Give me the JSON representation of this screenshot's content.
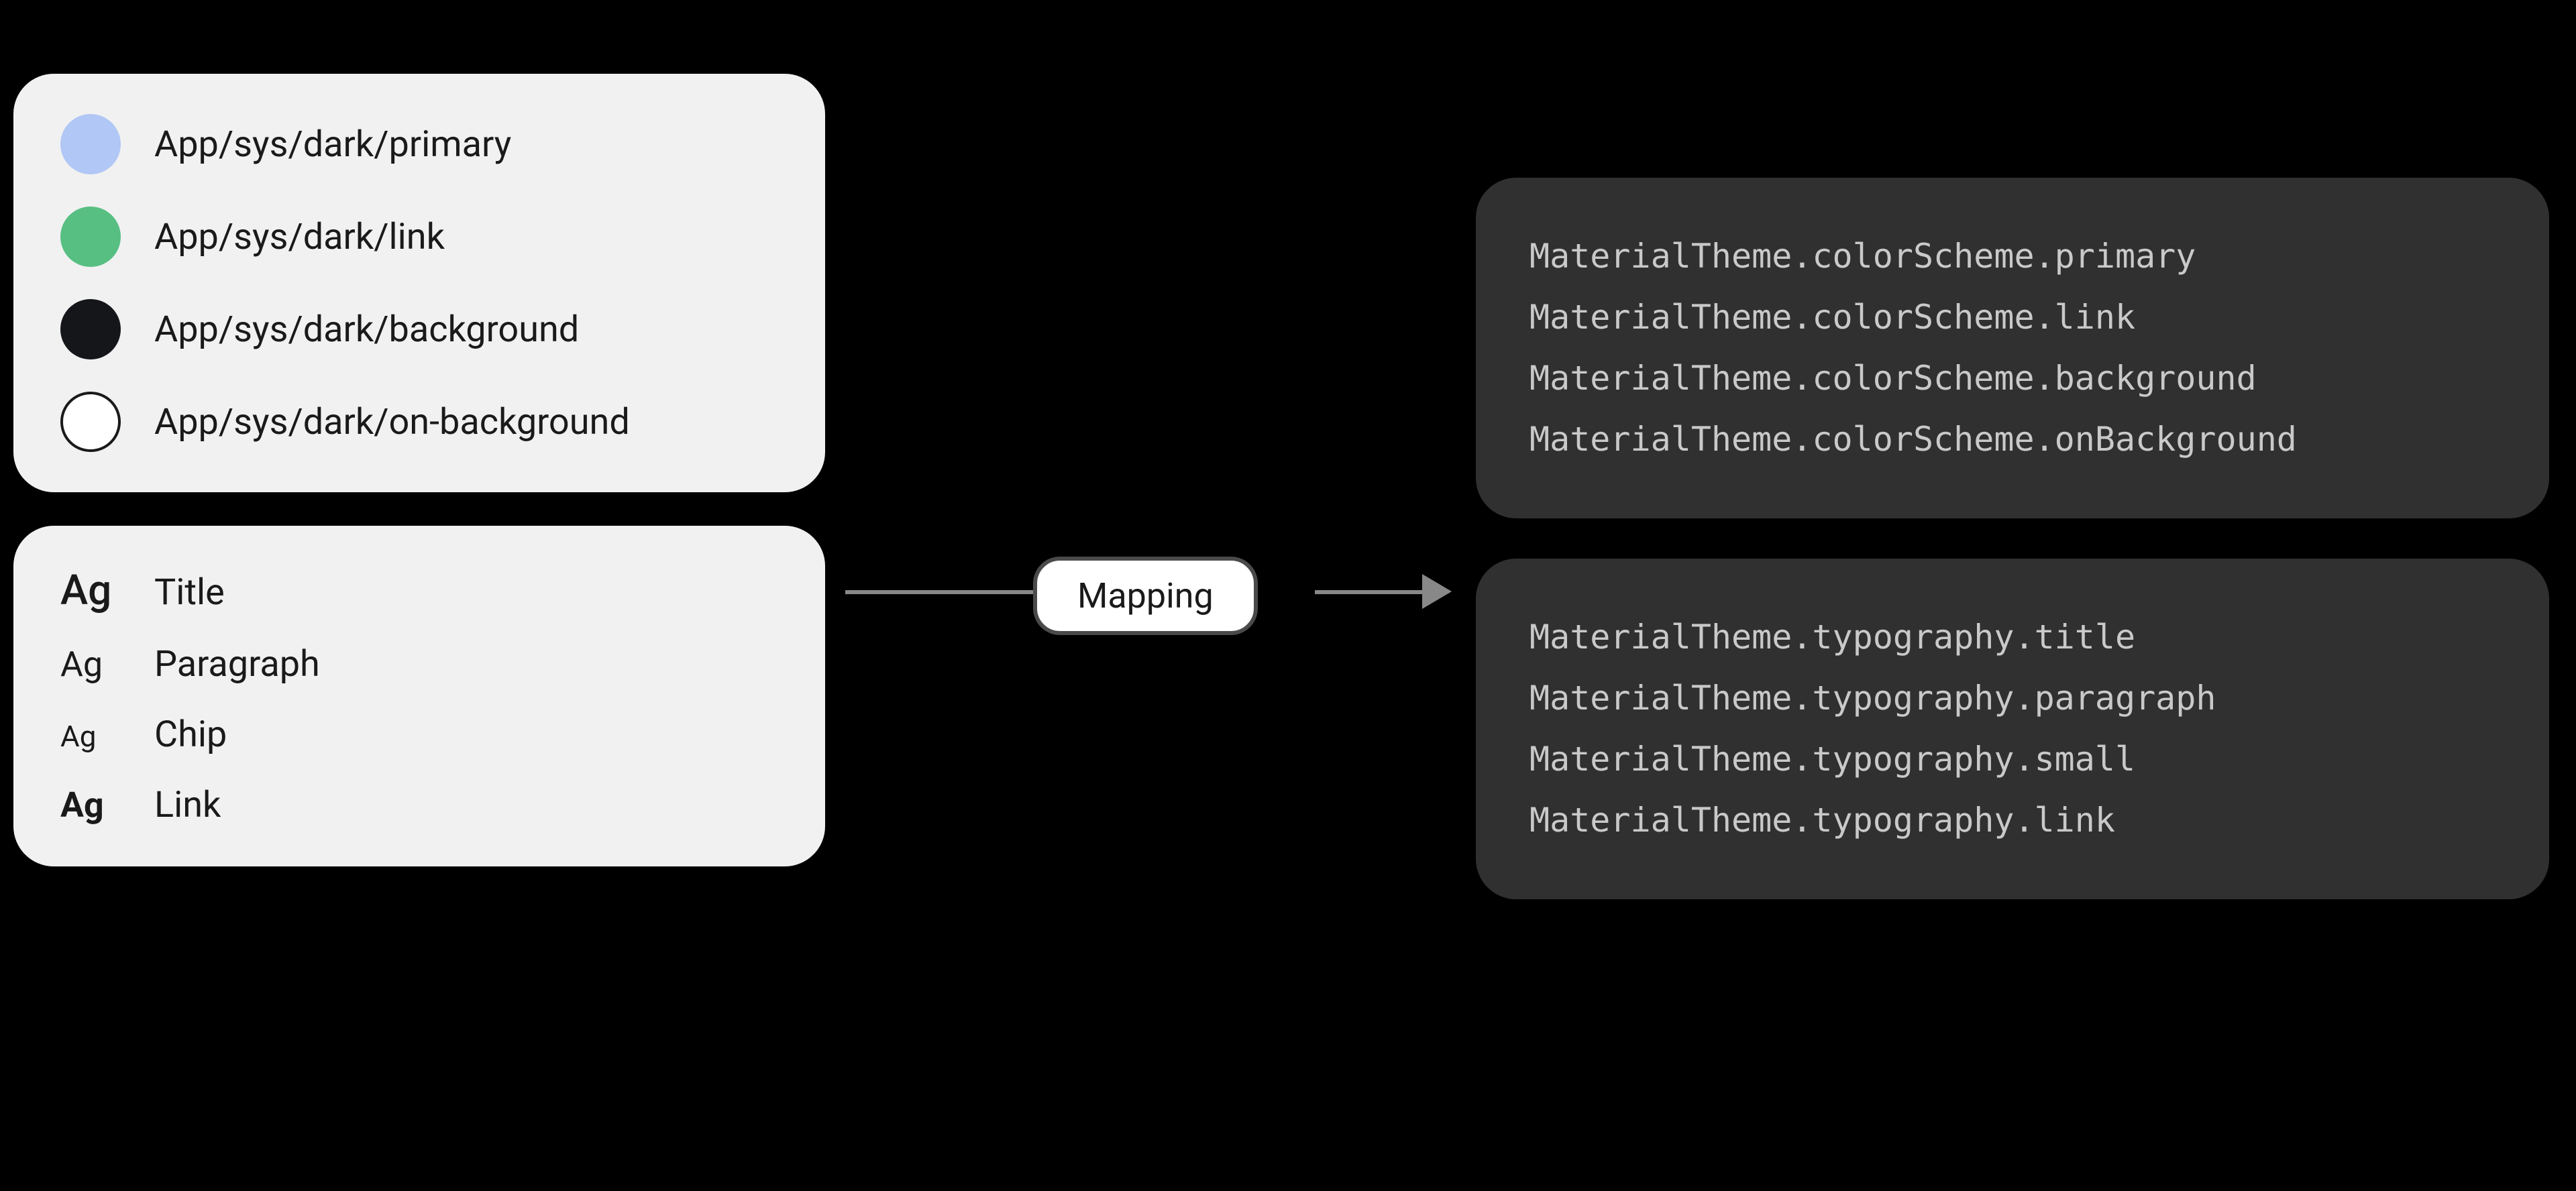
{
  "background_color": "#000000",
  "card_background": "#f1f1f1",
  "code_card_background": "#303030",
  "card_border_radius": 60,
  "colors": {
    "items": [
      {
        "label": "App/sys/dark/primary",
        "swatch": "#b1c7f5",
        "outlined": false
      },
      {
        "label": "App/sys/dark/link",
        "swatch": "#58bf83",
        "outlined": false
      },
      {
        "label": "App/sys/dark/background",
        "swatch": "#14161a",
        "outlined": false
      },
      {
        "label": "App/sys/dark/on-background",
        "swatch": "#ffffff",
        "outlined": true
      }
    ],
    "text_color": "#1a1a1a",
    "text_fontsize": 54
  },
  "typography": {
    "sample_text": "Ag",
    "items": [
      {
        "label": "Title",
        "fontsize": 62,
        "weight": 500
      },
      {
        "label": "Paragraph",
        "fontsize": 52,
        "weight": 400
      },
      {
        "label": "Chip",
        "fontsize": 44,
        "weight": 400
      },
      {
        "label": "Link",
        "fontsize": 52,
        "weight": 700
      }
    ],
    "text_color": "#1a1a1a",
    "label_fontsize": 54
  },
  "mapping": {
    "label": "Mapping",
    "badge_bg": "#ffffff",
    "badge_border": "#4a4a4a",
    "arrow_color": "#888888"
  },
  "code": {
    "text_color": "#c9c9c9",
    "font_family": "monospace",
    "fontsize": 50,
    "color_block": [
      "MaterialTheme.colorScheme.primary",
      "MaterialTheme.colorScheme.link",
      "MaterialTheme.colorScheme.background",
      "MaterialTheme.colorScheme.onBackground"
    ],
    "typography_block": [
      "MaterialTheme.typography.title",
      "MaterialTheme.typography.paragraph",
      "MaterialTheme.typography.small",
      "MaterialTheme.typography.link"
    ]
  }
}
